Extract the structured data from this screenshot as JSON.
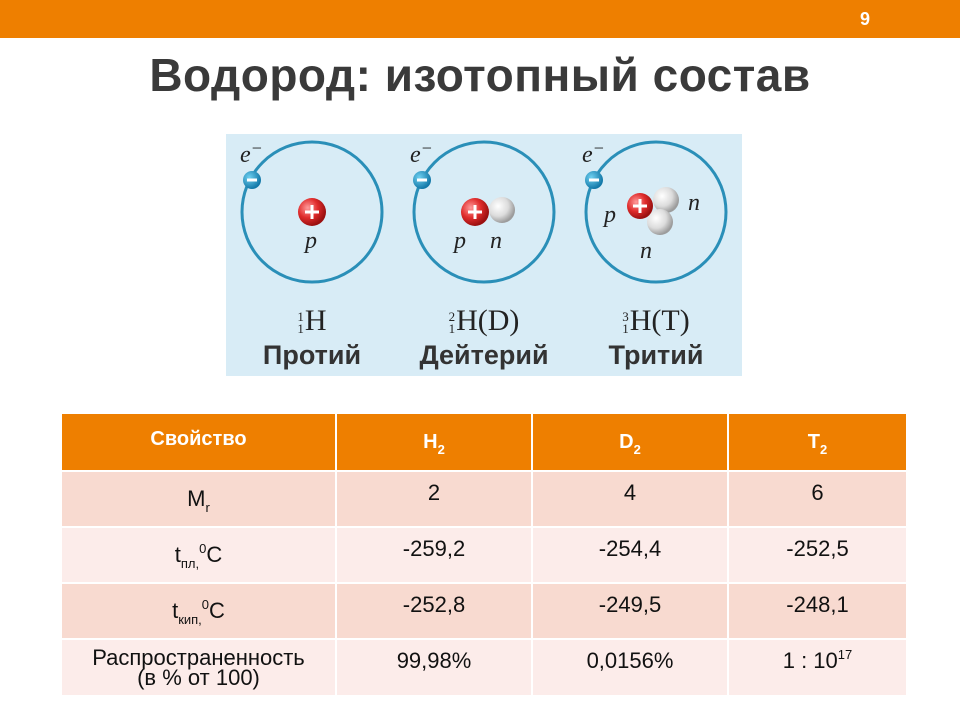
{
  "slide": {
    "number": "9",
    "title": "Водород: изотопный состав"
  },
  "isotopes": [
    {
      "mass": "1",
      "charge": "1",
      "symbol": "H",
      "name": "Протий",
      "nucleus": [
        "p"
      ]
    },
    {
      "mass": "2",
      "charge": "1",
      "symbol": "H(D)",
      "name": "Дейтерий",
      "nucleus": [
        "p",
        "n"
      ]
    },
    {
      "mass": "3",
      "charge": "1",
      "symbol": "H(T)",
      "name": "Тритий",
      "nucleus": [
        "p",
        "n",
        "n"
      ]
    }
  ],
  "electron_label": "e",
  "table": {
    "headers": {
      "property": "Свойство",
      "h": {
        "base": "H",
        "sub": "2"
      },
      "d": {
        "base": "D",
        "sub": "2"
      },
      "t": {
        "base": "T",
        "sub": "2"
      }
    },
    "rows": [
      {
        "prop": {
          "base": "M",
          "sub": "r"
        },
        "values": [
          "2",
          "4",
          "6"
        ]
      },
      {
        "prop": {
          "base": "t",
          "sub": "пл,",
          "sup": "0",
          "unit": "С"
        },
        "values": [
          "-259,2",
          "-254,4",
          "-252,5"
        ]
      },
      {
        "prop": {
          "base": "t",
          "sub": "кип,",
          "sup": "0",
          "unit": "С"
        },
        "values": [
          "-252,8",
          "-249,5",
          "-248,1"
        ]
      },
      {
        "prop": {
          "line1": "Распространенность",
          "line2": "(в % от 100)"
        },
        "values": [
          "99,98%",
          "0,0156%"
        ],
        "last": {
          "base": "1 : 10",
          "sup": "17"
        }
      }
    ]
  },
  "colors": {
    "accent": "#ee7f00",
    "row_dark": "#f8dad0",
    "row_light": "#fcecea",
    "orbit": "#2a8fb8",
    "proton": "#d9262b"
  }
}
